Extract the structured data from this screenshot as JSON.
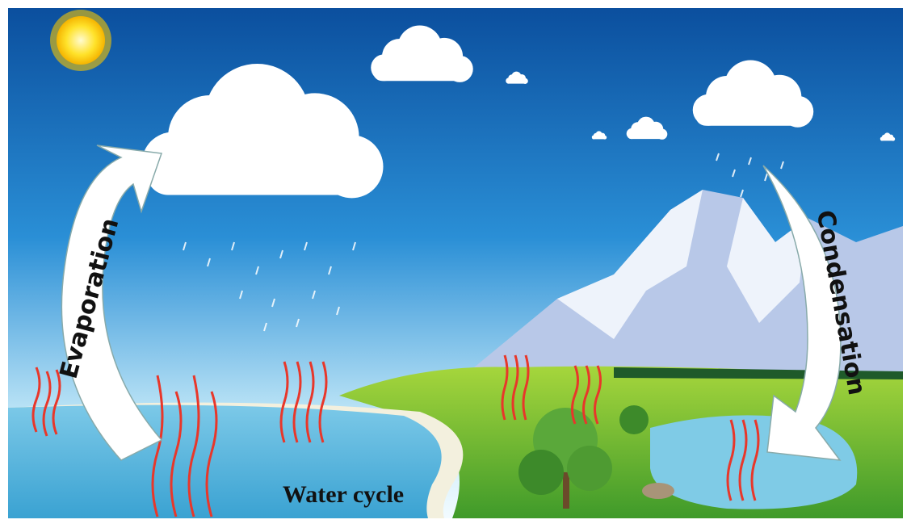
{
  "labels": {
    "left_arrow": "Evaporation",
    "right_arrow": "Condensation",
    "caption": "Water cycle"
  }
}
